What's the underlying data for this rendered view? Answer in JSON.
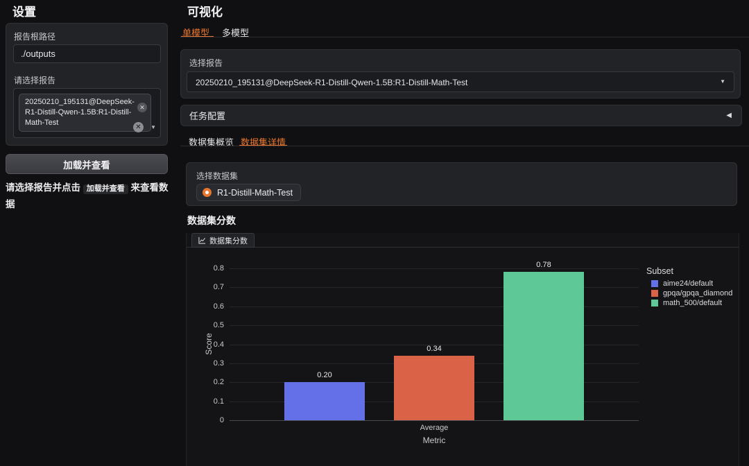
{
  "sidebar": {
    "title": "设置",
    "report_path": {
      "label": "报告根路径",
      "value": "./outputs"
    },
    "report_select": {
      "label": "请选择报告",
      "token": "20250210_195131@DeepSeek-R1-Distill-Qwen-1.5B:R1-Distill-Math-Test",
      "remove_icon": "✕",
      "clear_icon": "✕",
      "caret_icon": "▼"
    },
    "load_button": "加载并查看",
    "hint": {
      "prefix": "请选择报告并点击 ",
      "code": "加载并查看",
      "suffix": " 来查看数据"
    }
  },
  "main": {
    "title": "可视化",
    "tabs": [
      {
        "label": "单模型",
        "active": true
      },
      {
        "label": "多模型",
        "active": false
      }
    ],
    "report_select": {
      "label": "选择报告",
      "value": "20250210_195131@DeepSeek-R1-Distill-Qwen-1.5B:R1-Distill-Math-Test",
      "caret_icon": "▼"
    },
    "accordion": {
      "label": "任务配置",
      "arrow_icon": "◀"
    },
    "sub_tabs": [
      {
        "label": "数据集概览",
        "active": false
      },
      {
        "label": "数据集详情",
        "active": true
      }
    ],
    "dataset_select": {
      "label": "选择数据集",
      "option": "R1-Distill-Math-Test"
    },
    "section_title": "数据集分数",
    "chart_tab_label": "数据集分数"
  },
  "colors": {
    "accent": "#e8762e",
    "panel": "#222327",
    "chart_bg": "#141417"
  },
  "chart_data": {
    "type": "bar",
    "title": "数据集分数",
    "categories": [
      "Average"
    ],
    "series": [
      {
        "name": "aime24/default",
        "values": [
          0.2
        ],
        "color": "#6370e8"
      },
      {
        "name": "gpqa/gpqa_diamond",
        "values": [
          0.34
        ],
        "color": "#da6246"
      },
      {
        "name": "math_500/default",
        "values": [
          0.78
        ],
        "color": "#5ec897"
      }
    ],
    "value_labels": [
      "0.20",
      "0.34",
      "0.78"
    ],
    "xlabel": "Metric",
    "ylabel": "Score",
    "ylim": [
      0,
      0.8
    ],
    "ytick_step": 0.1,
    "grid": true,
    "legend_title": "Subset",
    "legend_position": "right"
  }
}
